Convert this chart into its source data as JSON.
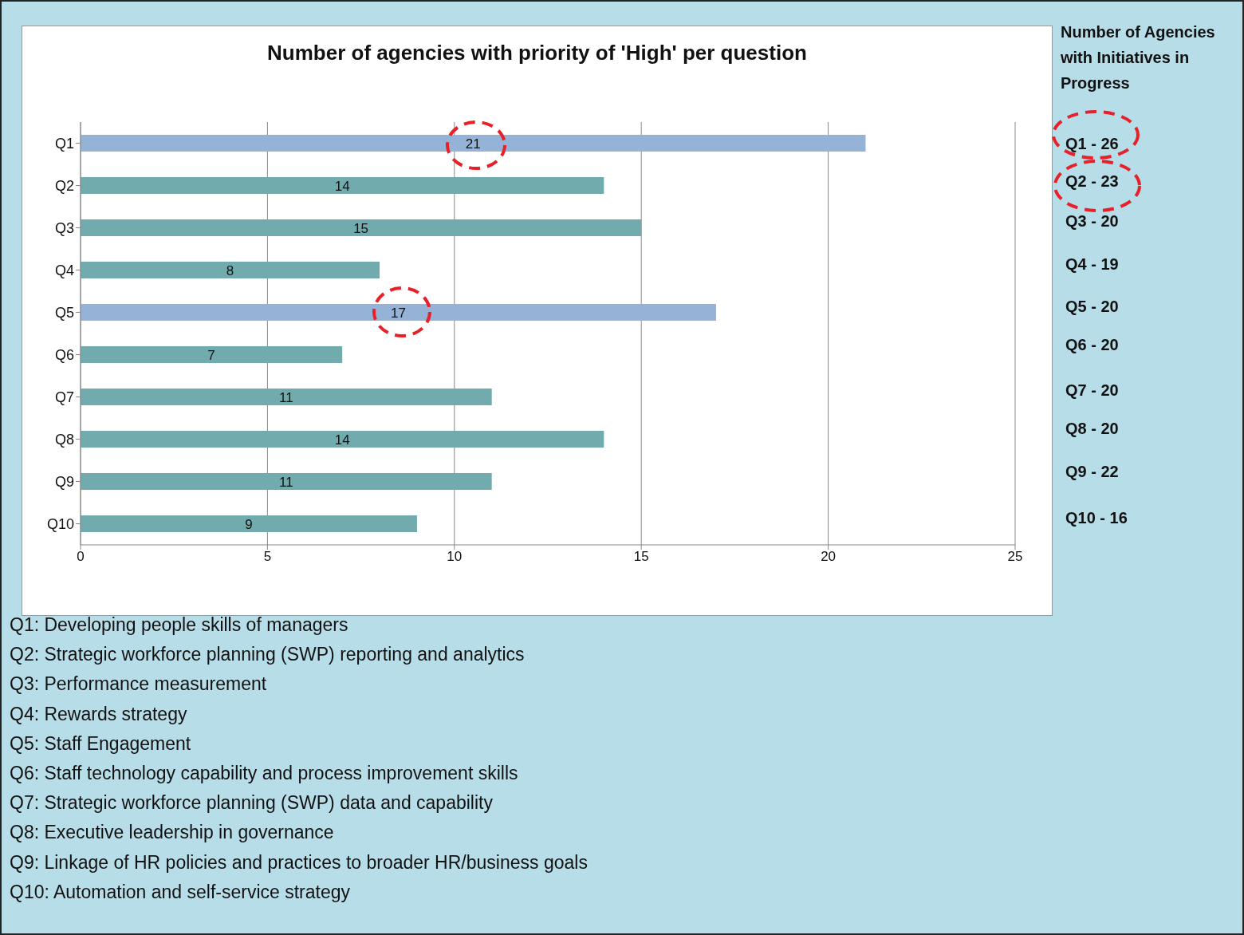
{
  "chart_data": {
    "type": "bar",
    "orientation": "horizontal",
    "title": "Number of agencies with priority of 'High' per question",
    "categories": [
      "Q1",
      "Q2",
      "Q3",
      "Q4",
      "Q5",
      "Q6",
      "Q7",
      "Q8",
      "Q9",
      "Q10"
    ],
    "values": [
      21,
      14,
      15,
      8,
      17,
      7,
      11,
      14,
      11,
      9
    ],
    "colors": [
      "#95b3d7",
      "#72abad",
      "#72abad",
      "#72abad",
      "#95b3d7",
      "#72abad",
      "#72abad",
      "#72abad",
      "#72abad",
      "#72abad"
    ],
    "xlim": [
      0,
      25
    ],
    "xticks": [
      0,
      5,
      10,
      15,
      20,
      25
    ],
    "grid": "x",
    "legend": false,
    "data_labels": true,
    "annotations": [
      "Number of Agencies with Initiatives in Progress",
      "Q1 - 26",
      "Q2 - 23",
      "Q3 - 20",
      "Q4 - 19",
      "Q5 - 20",
      "Q6 - 20",
      "Q7 - 20",
      "Q8 - 20",
      "Q9 - 22",
      "Q10 - 16",
      "Q1: Developing people skills of managers",
      "Q2: Strategic workforce planning (SWP) reporting and analytics",
      "Q3: Performance measurement",
      "Q4: Rewards strategy",
      "Q5: Staff Engagement",
      "Q6: Staff technology capability and process improvement skills",
      "Q7: Strategic workforce planning (SWP) data and capability",
      "Q8: Executive leadership in governance",
      "Q9: Linkage of HR policies and practices to broader HR/business goals",
      "Q10: Automation and self-service strategy"
    ]
  }
}
